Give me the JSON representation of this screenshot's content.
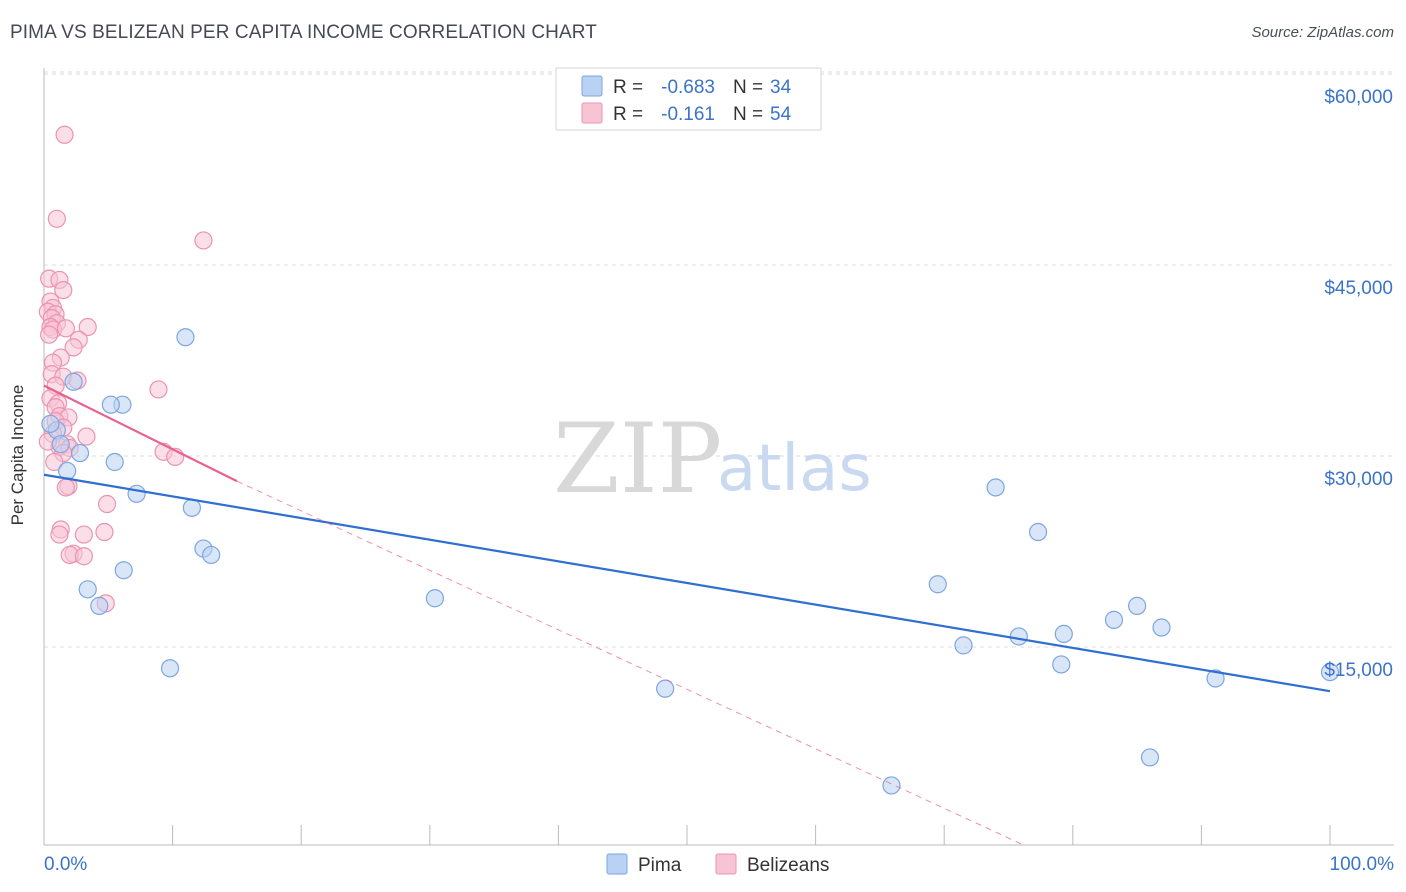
{
  "chart_data": {
    "type": "scatter",
    "title": "PIMA VS BELIZEAN PER CAPITA INCOME CORRELATION CHART",
    "source": "Source: ZipAtlas.com",
    "xlabel": "",
    "ylabel": "Per Capita Income",
    "xlim": [
      0,
      100
    ],
    "ylim": [
      0,
      62000
    ],
    "x_tick_labels": [
      "0.0%",
      "100.0%"
    ],
    "y_ticks": [
      {
        "value": 15000,
        "label": "$15,000"
      },
      {
        "value": 30000,
        "label": "$30,000"
      },
      {
        "value": 45000,
        "label": "$45,000"
      },
      {
        "value": 60000,
        "label": "$60,000"
      }
    ],
    "watermark": {
      "zip": "ZIP",
      "atlas": "atlas"
    },
    "legend": [
      {
        "r_label": "R =",
        "r_value": "-0.683",
        "n_label": "N =",
        "n_value": "34"
      },
      {
        "r_label": "R =",
        "r_value": "-0.161",
        "n_label": "N =",
        "n_value": "54"
      }
    ],
    "bottom_legend": [
      "Pima",
      "Belizeans"
    ],
    "colors": {
      "pima_fill": "#b9d1f3",
      "pima_stroke": "#7da6e0",
      "pima_line": "#2f6fd1",
      "beliz_fill": "#f7c4d5",
      "beliz_stroke": "#ec93b1",
      "beliz_line": "#e8628e",
      "grid": "#dddddd",
      "tick": "#3b73c9"
    },
    "series": [
      {
        "name": "Pima",
        "trend": {
          "x0": 0,
          "y0": 29000,
          "x1": 100,
          "y1": 12000
        },
        "points": [
          [
            1.0,
            32500
          ],
          [
            1.3,
            31400
          ],
          [
            1.8,
            29300
          ],
          [
            2.3,
            36300
          ],
          [
            2.8,
            30700
          ],
          [
            3.4,
            20000
          ],
          [
            4.3,
            18700
          ],
          [
            6.1,
            34500
          ],
          [
            5.2,
            34500
          ],
          [
            5.5,
            30000
          ],
          [
            6.2,
            21500
          ],
          [
            7.2,
            27500
          ],
          [
            9.8,
            13800
          ],
          [
            11.0,
            39800
          ],
          [
            11.5,
            26400
          ],
          [
            12.4,
            23200
          ],
          [
            13.0,
            22700
          ],
          [
            30.4,
            19300
          ],
          [
            48.3,
            12200
          ],
          [
            65.9,
            4600
          ],
          [
            69.5,
            20400
          ],
          [
            71.5,
            15600
          ],
          [
            74.0,
            28000
          ],
          [
            75.8,
            16300
          ],
          [
            77.3,
            24500
          ],
          [
            79.1,
            14100
          ],
          [
            79.3,
            16500
          ],
          [
            83.2,
            17600
          ],
          [
            85.0,
            18700
          ],
          [
            86.0,
            6800
          ],
          [
            86.9,
            17000
          ],
          [
            91.1,
            13000
          ],
          [
            100.0,
            13500
          ],
          [
            0.5,
            33000
          ]
        ]
      },
      {
        "name": "Belizeans",
        "trend": {
          "x0": 0,
          "y0": 36000,
          "x1": 15,
          "y1": 28500,
          "dash_x1": 76,
          "dash_y1": 0
        },
        "points": [
          [
            1.6,
            55700
          ],
          [
            1.0,
            49100
          ],
          [
            12.4,
            47400
          ],
          [
            0.4,
            44400
          ],
          [
            1.2,
            44300
          ],
          [
            1.5,
            43500
          ],
          [
            0.5,
            42600
          ],
          [
            0.7,
            42100
          ],
          [
            0.3,
            41800
          ],
          [
            0.9,
            41600
          ],
          [
            0.6,
            41300
          ],
          [
            1.0,
            40900
          ],
          [
            0.5,
            40600
          ],
          [
            0.7,
            40400
          ],
          [
            1.7,
            40500
          ],
          [
            3.4,
            40600
          ],
          [
            0.4,
            40000
          ],
          [
            2.7,
            39600
          ],
          [
            2.3,
            39000
          ],
          [
            1.3,
            38200
          ],
          [
            0.7,
            37800
          ],
          [
            0.6,
            36900
          ],
          [
            1.5,
            36700
          ],
          [
            2.6,
            36400
          ],
          [
            0.9,
            36000
          ],
          [
            8.9,
            35700
          ],
          [
            0.5,
            35000
          ],
          [
            1.1,
            34600
          ],
          [
            0.9,
            34300
          ],
          [
            1.2,
            33600
          ],
          [
            1.9,
            33500
          ],
          [
            0.9,
            33200
          ],
          [
            1.5,
            32700
          ],
          [
            0.7,
            32200
          ],
          [
            3.3,
            32000
          ],
          [
            1.8,
            31400
          ],
          [
            1.2,
            31200
          ],
          [
            2.0,
            31100
          ],
          [
            1.5,
            30700
          ],
          [
            9.3,
            30800
          ],
          [
            10.2,
            30400
          ],
          [
            0.8,
            30000
          ],
          [
            1.9,
            28100
          ],
          [
            1.7,
            28000
          ],
          [
            4.9,
            26700
          ],
          [
            1.3,
            24700
          ],
          [
            1.2,
            24300
          ],
          [
            3.1,
            24300
          ],
          [
            4.7,
            24500
          ],
          [
            2.3,
            22800
          ],
          [
            2.0,
            22700
          ],
          [
            3.1,
            22600
          ],
          [
            4.8,
            18900
          ],
          [
            0.3,
            31600
          ]
        ]
      }
    ]
  }
}
